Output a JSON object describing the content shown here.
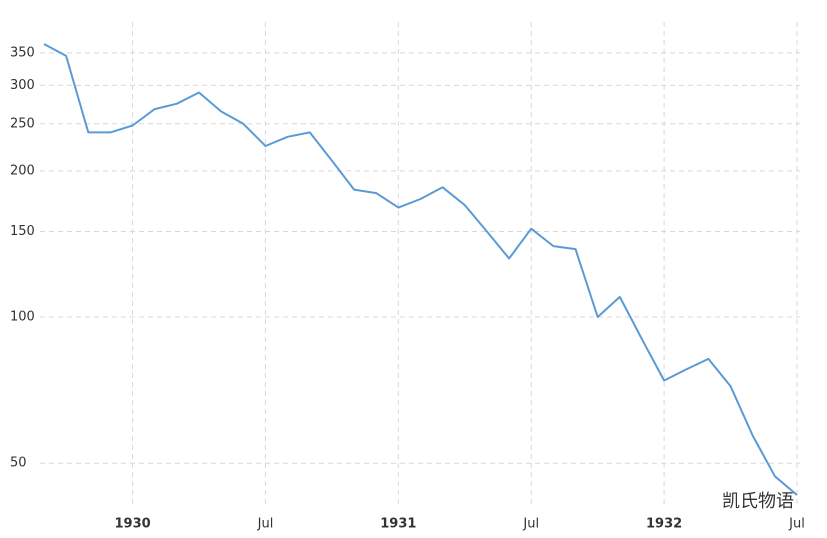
{
  "chart_data": {
    "type": "line",
    "log_scale": true,
    "grid": true,
    "x": [
      "1929-09",
      "1929-10",
      "1929-11",
      "1929-12",
      "1930-01",
      "1930-02",
      "1930-03",
      "1930-04",
      "1930-05",
      "1930-06",
      "1930-07",
      "1930-08",
      "1930-09",
      "1930-10",
      "1930-11",
      "1930-12",
      "1931-01",
      "1931-02",
      "1931-03",
      "1931-04",
      "1931-05",
      "1931-06",
      "1931-07",
      "1931-08",
      "1931-09",
      "1931-10",
      "1931-11",
      "1931-12",
      "1932-01",
      "1932-02",
      "1932-03",
      "1932-04",
      "1932-05",
      "1932-06",
      "1932-07"
    ],
    "series": [
      {
        "color": "#5b9bd5",
        "values": [
          365,
          345,
          240,
          240,
          248,
          268,
          275,
          290,
          265,
          250,
          225,
          235,
          240,
          210,
          183,
          180,
          168,
          175,
          185,
          170,
          150,
          132,
          152,
          140,
          138,
          100,
          110,
          90,
          74,
          78,
          82,
          72,
          57,
          47,
          43
        ]
      }
    ],
    "xlim": [
      "1929-09",
      "1932-07"
    ],
    "xticks": [
      {
        "value": "1930-01",
        "label": "1930"
      },
      {
        "value": "1930-07",
        "label": "Jul"
      },
      {
        "value": "1931-01",
        "label": "1931"
      },
      {
        "value": "1931-07",
        "label": "Jul"
      },
      {
        "value": "1932-01",
        "label": "1932"
      },
      {
        "value": "1932-07",
        "label": "Jul"
      }
    ],
    "ylim": [
      42,
      390
    ],
    "yticks": [
      50,
      100,
      150,
      200,
      250,
      300,
      350
    ],
    "watermark": "凯氏物语"
  }
}
